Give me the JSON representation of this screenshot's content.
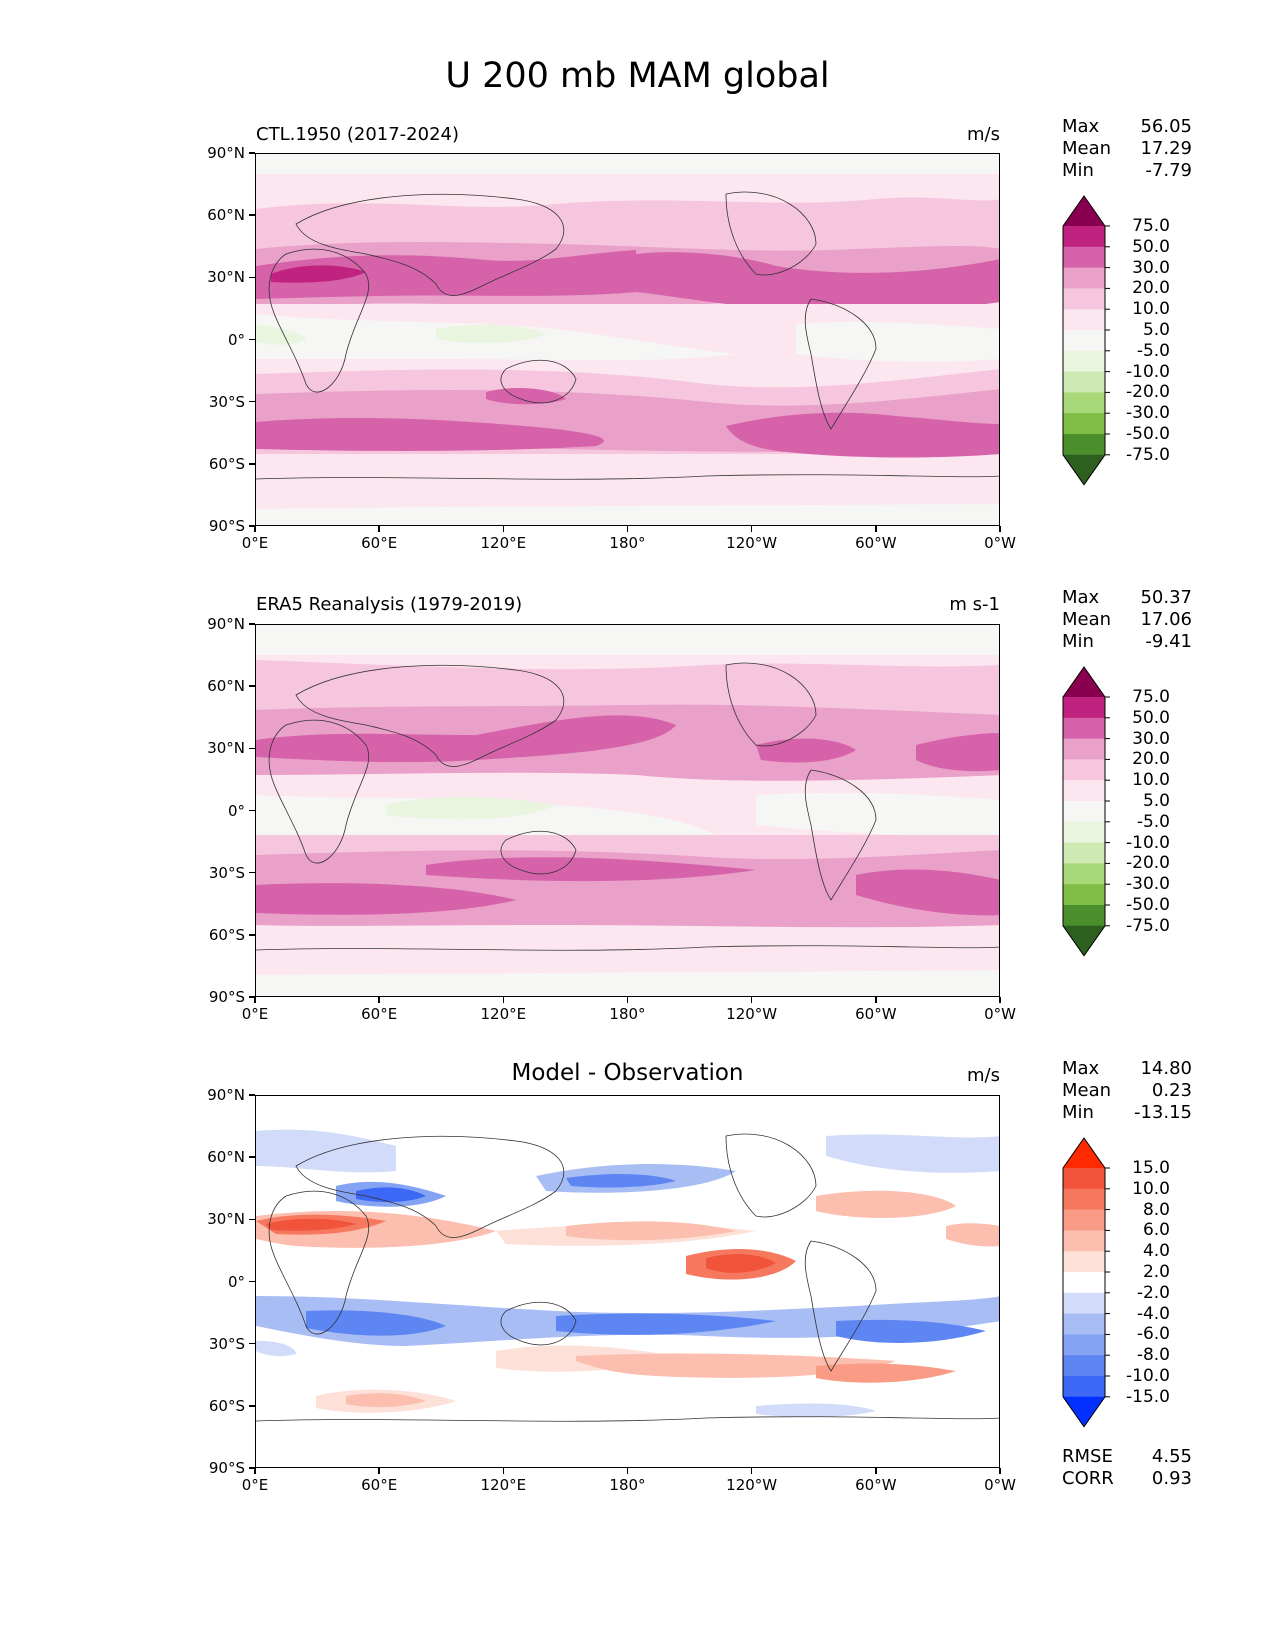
{
  "title": "U 200 mb MAM global",
  "axis_ticks": {
    "lat": [
      "90°N",
      "60°N",
      "30°N",
      "0°",
      "30°S",
      "60°S",
      "90°S"
    ],
    "lon": [
      "0°E",
      "60°E",
      "120°E",
      "180°",
      "120°W",
      "60°W",
      "0°W"
    ]
  },
  "colors": {
    "seq": [
      "#2d5f1f",
      "#4a8f2b",
      "#7fbd46",
      "#a8d878",
      "#cfe9b2",
      "#e9f5df",
      "#f6f6f4",
      "#fce7f1",
      "#f6c5de",
      "#e9a0c9",
      "#d662aa",
      "#c0237f",
      "#8a0050"
    ],
    "div": [
      "#0130ff",
      "#3c68f5",
      "#5e86f3",
      "#84a3f3",
      "#a9bdf5",
      "#d2dcfa",
      "#ffffff",
      "#fde0d8",
      "#fcbeae",
      "#fa9c85",
      "#f6795f",
      "#f1543a",
      "#ff2a00"
    ]
  },
  "chart_data": [
    {
      "type": "heatmap",
      "title": "CTL.1950 (2017-2024)",
      "units": "m/s",
      "stats": {
        "max_label": "Max",
        "max": "56.05",
        "mean_label": "Mean",
        "mean": "17.29",
        "min_label": "Min",
        "min": "-7.79"
      },
      "colorbar": {
        "levels": [
          "75.0",
          "50.0",
          "30.0",
          "20.0",
          "10.0",
          "5.0",
          "-5.0",
          "-10.0",
          "-20.0",
          "-30.0",
          "-50.0",
          "-75.0"
        ],
        "cmap": "seq"
      },
      "x": {
        "range": [
          0,
          360
        ]
      },
      "y": {
        "range": [
          -90,
          90
        ]
      }
    },
    {
      "type": "heatmap",
      "title": "ERA5 Reanalysis (1979-2019)",
      "units": "m s-1",
      "stats": {
        "max_label": "Max",
        "max": "50.37",
        "mean_label": "Mean",
        "mean": "17.06",
        "min_label": "Min",
        "min": "-9.41"
      },
      "colorbar": {
        "levels": [
          "75.0",
          "50.0",
          "30.0",
          "20.0",
          "10.0",
          "5.0",
          "-5.0",
          "-10.0",
          "-20.0",
          "-30.0",
          "-50.0",
          "-75.0"
        ],
        "cmap": "seq"
      },
      "x": {
        "range": [
          0,
          360
        ]
      },
      "y": {
        "range": [
          -90,
          90
        ]
      }
    },
    {
      "type": "heatmap",
      "title": "Model - Observation",
      "units": "m/s",
      "stats": {
        "max_label": "Max",
        "max": "14.80",
        "mean_label": "Mean",
        "mean": "0.23",
        "min_label": "Min",
        "min": "-13.15"
      },
      "extra": {
        "rmse_label": "RMSE",
        "rmse": "4.55",
        "corr_label": "CORR",
        "corr": "0.93"
      },
      "colorbar": {
        "levels": [
          "15.0",
          "10.0",
          "8.0",
          "6.0",
          "4.0",
          "2.0",
          "-2.0",
          "-4.0",
          "-6.0",
          "-8.0",
          "-10.0",
          "-15.0"
        ],
        "cmap": "div"
      },
      "x": {
        "range": [
          0,
          360
        ]
      },
      "y": {
        "range": [
          -90,
          90
        ]
      }
    }
  ]
}
